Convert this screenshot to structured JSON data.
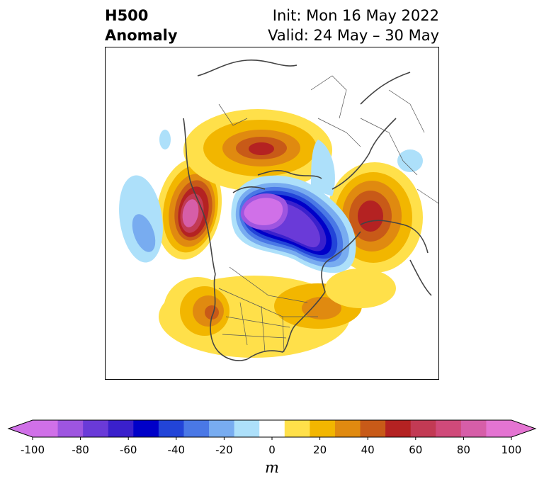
{
  "header": {
    "title_line1": "H500",
    "title_line2": "Anomaly",
    "init_text": "Init: Mon 16 May 2022",
    "valid_text": "Valid: 24 May – 30 May"
  },
  "map": {
    "projection": "polar-stereographic-north",
    "region": "Northern Hemisphere",
    "features": [
      "coastlines-icon",
      "country-borders-icon",
      "state-borders-icon"
    ]
  },
  "colorbar": {
    "label": "m",
    "ticks": [
      "-100",
      "-80",
      "-60",
      "-40",
      "-20",
      "0",
      "20",
      "40",
      "60",
      "80",
      "100"
    ],
    "levels": [
      -100,
      -90,
      -80,
      -70,
      -60,
      -50,
      -40,
      -30,
      -20,
      -10,
      10,
      20,
      30,
      40,
      50,
      60,
      70,
      80,
      90,
      100
    ],
    "colors": [
      "#d070e8",
      "#9e55e0",
      "#6a3ad8",
      "#3a20cc",
      "#0000c8",
      "#2244d8",
      "#4a78e6",
      "#78acf0",
      "#ade0fa",
      "#ffffff",
      "#ffe04a",
      "#f2b600",
      "#e08a10",
      "#c85a18",
      "#b42222",
      "#c23a54",
      "#d04a7a",
      "#d65ea8",
      "#e474d2"
    ],
    "extend": "both"
  }
}
